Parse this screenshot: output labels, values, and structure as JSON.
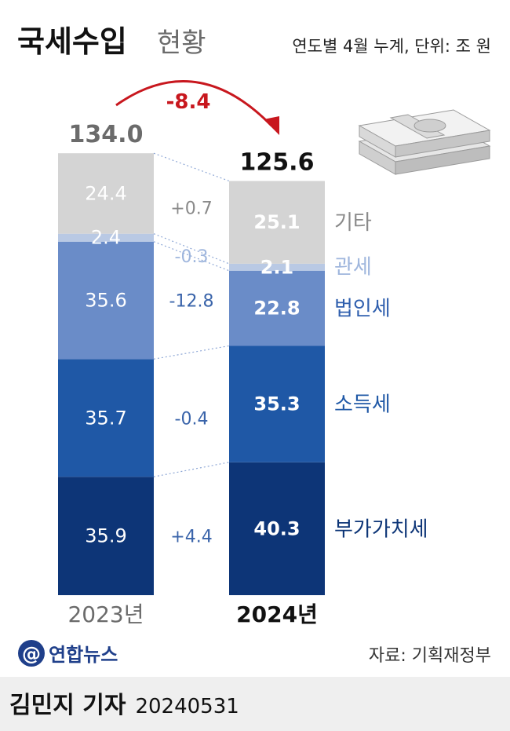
{
  "header": {
    "title": "국세수입",
    "subtitle": "현황",
    "unit_note": "연도별 4월 누계, 단위: 조 원"
  },
  "change_label": "-8.4",
  "source": "자료: 기획재정부",
  "logo": {
    "name": "연합뉴스"
  },
  "byline": {
    "author": "김민지 기자",
    "date": "20240531"
  },
  "colors": {
    "기타": "#d4d4d4",
    "관세": "#b9c9e4",
    "법인세": "#6a8cc8",
    "소득세": "#1f58a6",
    "부가가치세": "#0d3577",
    "arrow": "#c8171e",
    "diff_text": "#3a64aa"
  },
  "chart_data": {
    "type": "bar",
    "stacked": true,
    "categories": [
      "2023년",
      "2024년"
    ],
    "totals": [
      134.0,
      125.6
    ],
    "series": [
      {
        "name": "부가가치세",
        "values": [
          35.9,
          40.3
        ]
      },
      {
        "name": "소득세",
        "values": [
          35.7,
          35.3
        ]
      },
      {
        "name": "법인세",
        "values": [
          35.6,
          22.8
        ]
      },
      {
        "name": "관세",
        "values": [
          2.4,
          2.1
        ]
      },
      {
        "name": "기타",
        "values": [
          24.4,
          25.1
        ]
      }
    ],
    "differences": [
      "+4.4",
      "-0.4",
      "-12.8",
      "-0.3",
      "+0.7"
    ]
  }
}
